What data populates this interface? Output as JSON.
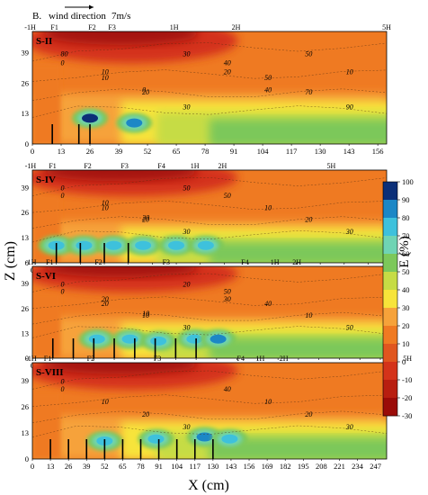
{
  "header": {
    "panel_letter": "B.",
    "wind_label": "wind direction",
    "wind_speed": "7m/s"
  },
  "axes": {
    "xlabel": "X (cm)",
    "ylabel": "Z (cm)",
    "colorbar_label": "E (%)"
  },
  "colors": {
    "deep_red": "#9a0b08",
    "red": "#d4331a",
    "orange": "#ef7a22",
    "light_orange": "#f6a23a",
    "yellow": "#f7e43a",
    "yellow_green": "#c6dc45",
    "green": "#7cc85a",
    "aqua": "#6fd4b4",
    "cyan": "#3ec1dc",
    "blue": "#1c87c6",
    "navy": "#0c2f78"
  },
  "chart_data": [
    {
      "type": "heatmap",
      "panel": "S-II",
      "x_ticks": [
        "0",
        "13",
        "26",
        "39",
        "52",
        "65",
        "78",
        "91",
        "104",
        "117",
        "130",
        "143",
        "156"
      ],
      "y_ticks": [
        "0",
        "13",
        "26",
        "39"
      ],
      "xlim": [
        0,
        160
      ],
      "ylim": [
        0,
        48
      ],
      "top_labels": [
        "-1H",
        "F1",
        "F2",
        "F3",
        "1H",
        "2H",
        "5H",
        "8H",
        "10H"
      ],
      "contour_labels": [
        "0",
        "10",
        "20",
        "30",
        "40",
        "50",
        "70",
        "90",
        "80",
        "10",
        "0",
        "30",
        "20",
        "40",
        "50",
        "10"
      ],
      "hotspots": [
        {
          "x": 26,
          "z": 11,
          "value": 100
        },
        {
          "x": 46,
          "z": 9,
          "value": 85
        }
      ],
      "structures_x": [
        9,
        21,
        26
      ]
    },
    {
      "type": "heatmap",
      "panel": "S-IV",
      "x_ticks": [
        "0",
        "13",
        "26",
        "39",
        "52",
        "65",
        "78",
        "91",
        "104",
        "117",
        "130",
        "143",
        "156",
        "169",
        "182"
      ],
      "y_ticks": [
        "0",
        "13",
        "26",
        "39"
      ],
      "xlim": [
        0,
        192
      ],
      "ylim": [
        0,
        48
      ],
      "top_labels": [
        "-1H",
        "F1",
        "F2",
        "F3",
        "F4",
        "1H",
        "2H",
        "5H",
        "8H",
        "10H"
      ],
      "contour_labels": [
        "0",
        "10",
        "20",
        "30",
        "50",
        "10",
        "20",
        "30",
        "0",
        "10",
        "20",
        "50"
      ],
      "hotspots": [
        {
          "x": 13,
          "z": 9,
          "value": 75
        },
        {
          "x": 28,
          "z": 9,
          "value": 80
        },
        {
          "x": 44,
          "z": 9,
          "value": 80
        },
        {
          "x": 60,
          "z": 9,
          "value": 80
        },
        {
          "x": 78,
          "z": 9,
          "value": 80
        },
        {
          "x": 94,
          "z": 9,
          "value": 75
        }
      ],
      "structures_x": [
        13,
        26,
        39,
        52
      ]
    },
    {
      "type": "heatmap",
      "panel": "S-VI",
      "x_ticks": [
        "0",
        "13",
        "26",
        "39",
        "52",
        "65",
        "78",
        "91",
        "104",
        "117",
        "130",
        "143",
        "156",
        "169",
        "182",
        "195",
        "208",
        "221"
      ],
      "y_ticks": [
        "0",
        "13",
        "26",
        "39"
      ],
      "xlim": [
        0,
        225
      ],
      "ylim": [
        0,
        48
      ],
      "top_labels": [
        "-1H",
        "F1",
        "F2",
        "F3",
        "F4",
        "1H",
        "2H",
        "5H",
        "8H",
        "10H"
      ],
      "contour_labels": [
        "0",
        "20",
        "10",
        "30",
        "50",
        "40",
        "10",
        "50",
        "0",
        "20",
        "10",
        "20",
        "30"
      ],
      "hotspots": [
        {
          "x": 41,
          "z": 10,
          "value": 80
        },
        {
          "x": 62,
          "z": 10,
          "value": 80
        },
        {
          "x": 80,
          "z": 9,
          "value": 75
        },
        {
          "x": 103,
          "z": 10,
          "value": 80
        },
        {
          "x": 118,
          "z": 10,
          "value": 85
        }
      ],
      "structures_x": [
        13,
        26,
        39,
        52,
        65,
        78,
        91,
        104
      ]
    },
    {
      "type": "heatmap",
      "panel": "S-VIII",
      "x_ticks": [
        "0",
        "13",
        "26",
        "39",
        "52",
        "65",
        "78",
        "91",
        "104",
        "117",
        "130",
        "143",
        "156",
        "169",
        "182",
        "195",
        "208",
        "221",
        "234",
        "247"
      ],
      "y_ticks": [
        "0",
        "13",
        "26",
        "39"
      ],
      "xlim": [
        0,
        255
      ],
      "ylim": [
        0,
        48
      ],
      "top_labels": [
        "-1H",
        "F1",
        "F2",
        "F3",
        "F4",
        "1H",
        "2H",
        "5H",
        "8H",
        "10H"
      ],
      "contour_labels": [
        "0",
        "10",
        "20",
        "30",
        "40",
        "10",
        "20",
        "30",
        "0"
      ],
      "hotspots": [
        {
          "x": 52,
          "z": 9,
          "value": 75
        },
        {
          "x": 89,
          "z": 10,
          "value": 80
        },
        {
          "x": 124,
          "z": 11,
          "value": 85
        },
        {
          "x": 142,
          "z": 10,
          "value": 75
        }
      ],
      "structures_x": [
        13,
        26,
        39,
        52,
        65,
        78,
        91,
        104,
        117,
        130
      ]
    }
  ],
  "colorbar": {
    "ticks": [
      "100",
      "90",
      "80",
      "70",
      "60",
      "50",
      "40",
      "30",
      "20",
      "10",
      "0",
      "-10",
      "-20",
      "-30"
    ],
    "colors": [
      "#0c2f78",
      "#1c87c6",
      "#3ec1dc",
      "#6fd4b4",
      "#7cc85a",
      "#c6dc45",
      "#f7e43a",
      "#f6a23a",
      "#ef7a22",
      "#e0561f",
      "#d4331a",
      "#b81e10",
      "#9a0b08"
    ]
  }
}
